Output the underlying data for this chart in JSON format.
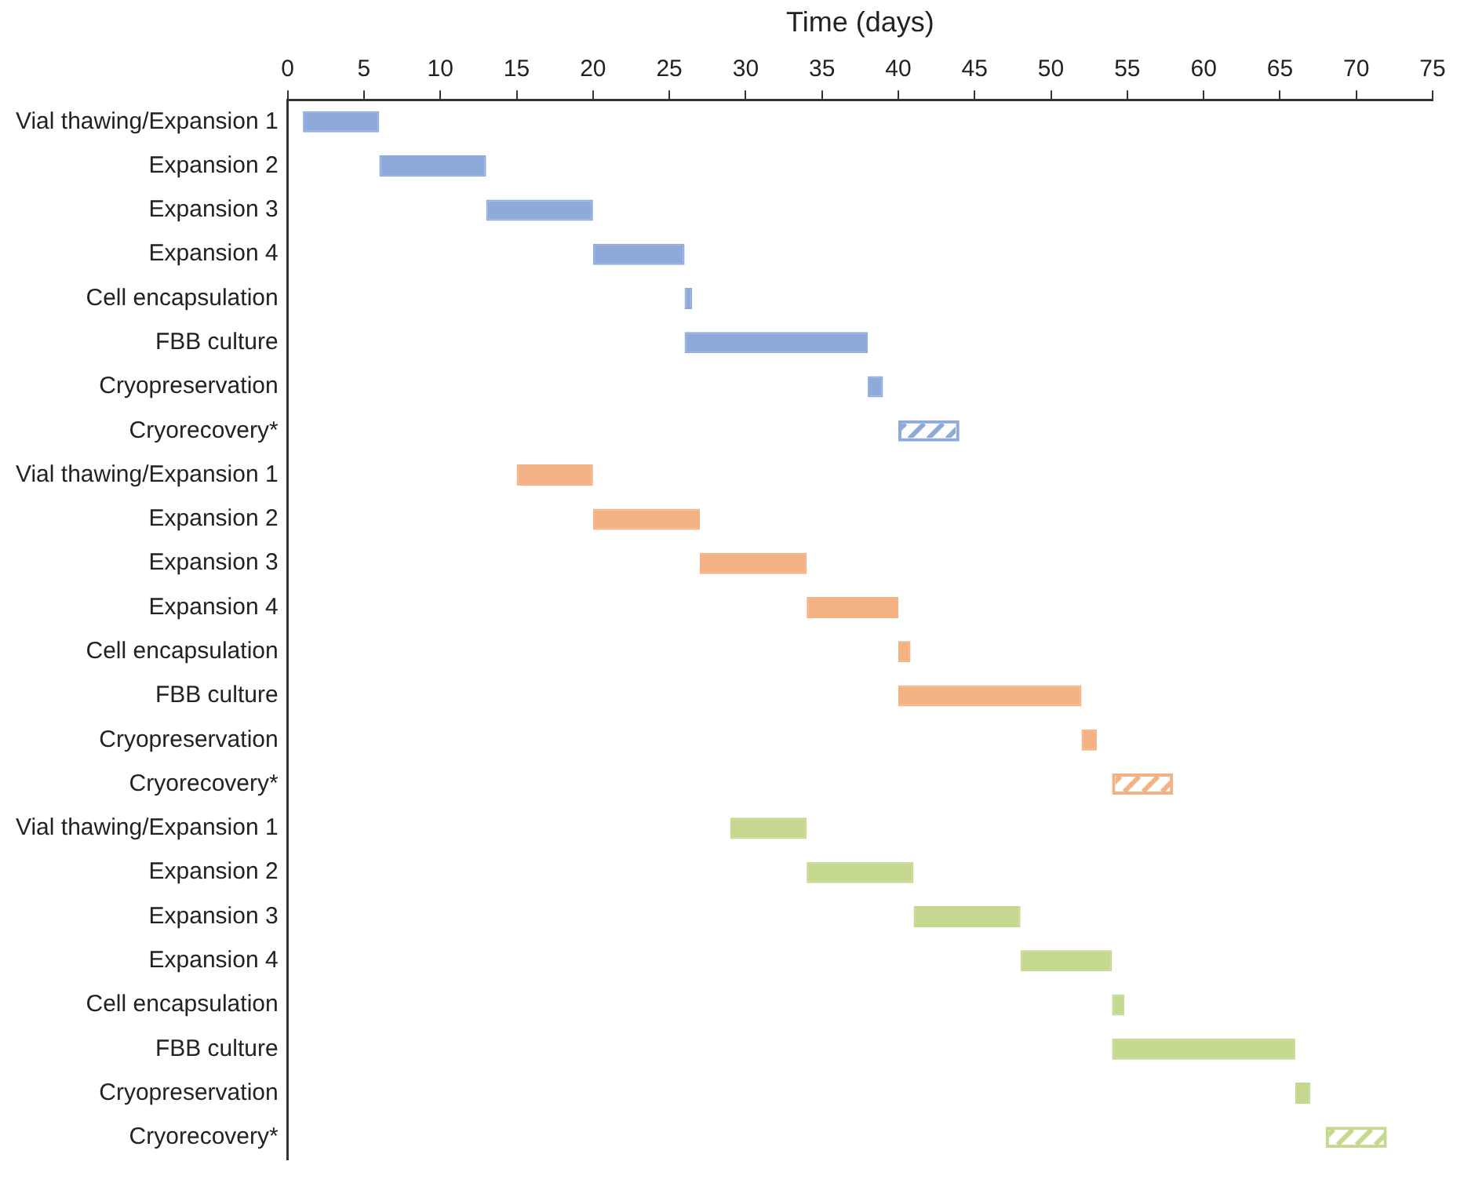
{
  "chart_data": {
    "type": "bar",
    "orientation": "horizontal",
    "xlabel": "Time (days)",
    "categories": [
      "Vial thawing/Expansion 1",
      "Expansion 2",
      "Expansion 3",
      "Expansion 4",
      "Cell encapsulation",
      "FBB culture",
      "Cryopreservation",
      "Cryorecovery*",
      "Vial thawing/Expansion 1",
      "Expansion 2",
      "Expansion 3",
      "Expansion 4",
      "Cell encapsulation",
      "FBB culture",
      "Cryopreservation",
      "Cryorecovery*",
      "Vial thawing/Expansion 1",
      "Expansion 2",
      "Expansion 3",
      "Expansion 4",
      "Cell encapsulation",
      "FBB culture",
      "Cryopreservation",
      "Cryorecovery*"
    ],
    "series": [
      {
        "base": [
          1,
          6,
          13,
          20,
          26,
          26,
          38,
          null,
          15,
          20,
          27,
          34,
          40,
          40,
          52,
          null,
          29,
          34,
          41,
          48,
          54,
          54,
          66,
          null
        ],
        "values": [
          5,
          7,
          7,
          6,
          0.5,
          12,
          1,
          null,
          5,
          7,
          7,
          6,
          0.8,
          12,
          1,
          null,
          5,
          7,
          7,
          6,
          0.8,
          12,
          1,
          null
        ],
        "colors": [
          "#8eaadb",
          "#8eaadb",
          "#8eaadb",
          "#8eaadb",
          "#8eaadb",
          "#8eaadb",
          "#8eaadb",
          null,
          "#f4b183",
          "#f4b183",
          "#f4b183",
          "#f4b183",
          "#f4b183",
          "#f4b183",
          "#f4b183",
          null,
          "#c5d88f",
          "#c5d88f",
          "#c5d88f",
          "#c5d88f",
          "#c5d88f",
          "#c5d88f",
          "#c5d88f",
          null
        ]
      },
      {
        "base": [
          null,
          null,
          null,
          null,
          null,
          null,
          null,
          40,
          null,
          null,
          null,
          null,
          null,
          null,
          null,
          54,
          null,
          null,
          null,
          null,
          null,
          null,
          null,
          68
        ],
        "values": [
          null,
          null,
          null,
          null,
          null,
          null,
          null,
          4,
          null,
          null,
          null,
          null,
          null,
          null,
          null,
          4,
          null,
          null,
          null,
          null,
          null,
          null,
          null,
          4
        ],
        "colors": [
          null,
          null,
          null,
          null,
          null,
          null,
          null,
          "#8eaadb",
          null,
          null,
          null,
          null,
          null,
          null,
          null,
          "#f4b183",
          null,
          null,
          null,
          null,
          null,
          null,
          null,
          "#c5d88f"
        ]
      }
    ],
    "xlim": [
      0,
      75
    ],
    "xticks": [
      0,
      5,
      10,
      15,
      20,
      25,
      30,
      35,
      40,
      45,
      50,
      55,
      60,
      65,
      70,
      75
    ],
    "grid": false,
    "legend": false
  }
}
